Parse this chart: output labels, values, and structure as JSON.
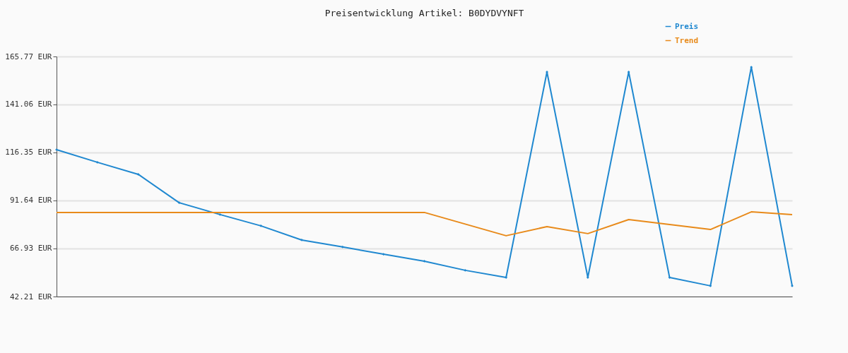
{
  "chart_data": {
    "type": "line",
    "title": "Preisentwicklung Artikel: B0DYDVYNFT",
    "categories": [
      null,
      null,
      null,
      null,
      null,
      null,
      null,
      null,
      null,
      null,
      null,
      null,
      null,
      null,
      null,
      null,
      null,
      null,
      null
    ],
    "series": [
      {
        "name": "Preis",
        "color": "#1f88d0",
        "marker": "diamond",
        "values": [
          117.8,
          111.3,
          105.1,
          90.5,
          84.4,
          78.6,
          71.3,
          67.7,
          64.0,
          60.4,
          55.7,
          52.0,
          157.8,
          52.0,
          157.8,
          52.0,
          47.7,
          160.3,
          47.7
        ]
      },
      {
        "name": "Trend",
        "color": "#e88a1a",
        "values": [
          85.5,
          85.5,
          85.5,
          85.5,
          85.5,
          85.5,
          85.5,
          85.5,
          85.5,
          85.5,
          79.5,
          73.5,
          78.2,
          74.6,
          81.8,
          79.3,
          76.7,
          85.8,
          84.4
        ]
      }
    ],
    "ylim": [
      42.21,
      165.77
    ],
    "yticks": [
      {
        "value": 42.21,
        "label": "42.21 EUR"
      },
      {
        "value": 66.93,
        "label": "66.93 EUR"
      },
      {
        "value": 91.64,
        "label": "91.64 EUR"
      },
      {
        "value": 116.35,
        "label": "116.35 EUR"
      },
      {
        "value": 141.06,
        "label": "141.06 EUR"
      },
      {
        "value": 165.77,
        "label": "165.77 EUR"
      }
    ],
    "grid": "y",
    "legend": "top right",
    "line_style": "solid"
  }
}
